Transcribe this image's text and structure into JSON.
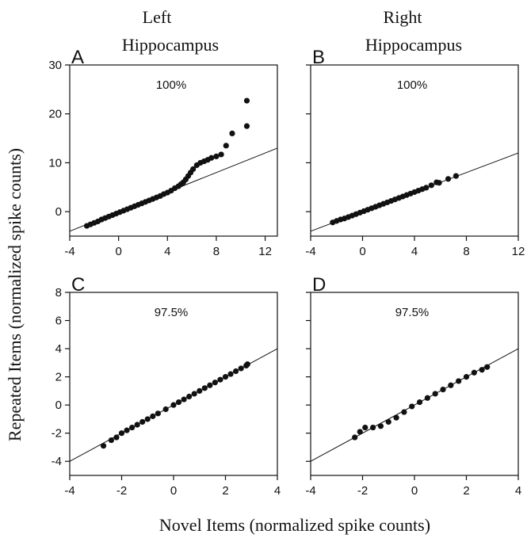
{
  "figure": {
    "column_titles": [
      [
        "Left",
        "Hippocampus"
      ],
      [
        "Right",
        "Hippocampus"
      ]
    ],
    "ylabel": "Repeated Items (normalized spike counts)",
    "xlabel": "Novel Items (normalized spike counts)"
  },
  "chart_data": [
    {
      "panel": "A",
      "type": "scatter",
      "annotation": "100%",
      "xlim": [
        -4,
        13
      ],
      "ylim": [
        -5,
        30
      ],
      "xticks": [
        -4,
        0,
        4,
        8,
        12
      ],
      "yticks": [
        0,
        10,
        20,
        30
      ],
      "reference_line": {
        "slope": 1,
        "intercept": 0
      },
      "points": [
        [
          -2.6,
          -2.9
        ],
        [
          -2.3,
          -2.6
        ],
        [
          -2.0,
          -2.3
        ],
        [
          -1.7,
          -2.0
        ],
        [
          -1.4,
          -1.6
        ],
        [
          -1.1,
          -1.3
        ],
        [
          -0.8,
          -1.0
        ],
        [
          -0.5,
          -0.7
        ],
        [
          -0.2,
          -0.4
        ],
        [
          0.1,
          -0.1
        ],
        [
          0.4,
          0.2
        ],
        [
          0.7,
          0.5
        ],
        [
          1.0,
          0.8
        ],
        [
          1.3,
          1.1
        ],
        [
          1.6,
          1.4
        ],
        [
          1.9,
          1.7
        ],
        [
          2.2,
          2.0
        ],
        [
          2.5,
          2.3
        ],
        [
          2.8,
          2.6
        ],
        [
          3.1,
          2.9
        ],
        [
          3.4,
          3.2
        ],
        [
          3.7,
          3.6
        ],
        [
          4.0,
          3.9
        ],
        [
          4.3,
          4.3
        ],
        [
          4.6,
          4.8
        ],
        [
          4.9,
          5.2
        ],
        [
          5.1,
          5.6
        ],
        [
          5.3,
          6.0
        ],
        [
          5.5,
          6.6
        ],
        [
          5.7,
          7.3
        ],
        [
          5.9,
          8.0
        ],
        [
          6.1,
          8.7
        ],
        [
          6.4,
          9.5
        ],
        [
          6.7,
          10.0
        ],
        [
          7.0,
          10.3
        ],
        [
          7.3,
          10.6
        ],
        [
          7.6,
          11.0
        ],
        [
          8.0,
          11.3
        ],
        [
          8.4,
          11.7
        ],
        [
          8.8,
          13.5
        ],
        [
          9.3,
          16.0
        ],
        [
          10.5,
          17.5
        ],
        [
          10.5,
          22.7
        ]
      ]
    },
    {
      "panel": "B",
      "type": "scatter",
      "annotation": "100%",
      "xlim": [
        -4,
        12
      ],
      "ylim": [
        -5,
        30
      ],
      "xticks": [
        -4,
        0,
        4,
        8,
        12
      ],
      "yticks": [
        0,
        10,
        20,
        30
      ],
      "reference_line": {
        "slope": 1,
        "intercept": 0
      },
      "points": [
        [
          -2.3,
          -2.2
        ],
        [
          -2.0,
          -1.9
        ],
        [
          -1.7,
          -1.6
        ],
        [
          -1.4,
          -1.4
        ],
        [
          -1.1,
          -1.1
        ],
        [
          -0.8,
          -0.8
        ],
        [
          -0.5,
          -0.5
        ],
        [
          -0.2,
          -0.2
        ],
        [
          0.1,
          0.1
        ],
        [
          0.4,
          0.4
        ],
        [
          0.7,
          0.7
        ],
        [
          1.0,
          1.0
        ],
        [
          1.3,
          1.3
        ],
        [
          1.6,
          1.6
        ],
        [
          1.9,
          1.9
        ],
        [
          2.2,
          2.2
        ],
        [
          2.5,
          2.5
        ],
        [
          2.8,
          2.8
        ],
        [
          3.1,
          3.1
        ],
        [
          3.4,
          3.4
        ],
        [
          3.7,
          3.7
        ],
        [
          4.0,
          4.0
        ],
        [
          4.3,
          4.3
        ],
        [
          4.6,
          4.6
        ],
        [
          4.9,
          4.9
        ],
        [
          5.3,
          5.4
        ],
        [
          5.7,
          6.0
        ],
        [
          5.9,
          5.9
        ],
        [
          6.6,
          6.7
        ],
        [
          7.2,
          7.3
        ]
      ]
    },
    {
      "panel": "C",
      "type": "scatter",
      "annotation": "97.5%",
      "xlim": [
        -4,
        4
      ],
      "ylim": [
        -5,
        8
      ],
      "xticks": [
        -4,
        -2,
        0,
        2,
        4
      ],
      "yticks": [
        -4,
        -2,
        0,
        2,
        4,
        6,
        8
      ],
      "reference_line": {
        "slope": 1,
        "intercept": 0
      },
      "points": [
        [
          -2.7,
          -2.9
        ],
        [
          -2.4,
          -2.5
        ],
        [
          -2.2,
          -2.3
        ],
        [
          -2.0,
          -2.0
        ],
        [
          -1.8,
          -1.8
        ],
        [
          -1.6,
          -1.6
        ],
        [
          -1.4,
          -1.4
        ],
        [
          -1.2,
          -1.2
        ],
        [
          -1.0,
          -1.0
        ],
        [
          -0.8,
          -0.8
        ],
        [
          -0.6,
          -0.6
        ],
        [
          -0.3,
          -0.3
        ],
        [
          0.0,
          0.0
        ],
        [
          0.2,
          0.2
        ],
        [
          0.4,
          0.4
        ],
        [
          0.6,
          0.6
        ],
        [
          0.8,
          0.8
        ],
        [
          1.0,
          1.0
        ],
        [
          1.2,
          1.2
        ],
        [
          1.4,
          1.4
        ],
        [
          1.6,
          1.6
        ],
        [
          1.8,
          1.8
        ],
        [
          2.0,
          2.0
        ],
        [
          2.2,
          2.2
        ],
        [
          2.4,
          2.4
        ],
        [
          2.6,
          2.6
        ],
        [
          2.8,
          2.8
        ],
        [
          2.85,
          2.9
        ]
      ]
    },
    {
      "panel": "D",
      "type": "scatter",
      "annotation": "97.5%",
      "xlim": [
        -4,
        4
      ],
      "ylim": [
        -5,
        8
      ],
      "xticks": [
        -4,
        -2,
        0,
        2,
        4
      ],
      "yticks": [
        -4,
        -2,
        0,
        2,
        4,
        6,
        8
      ],
      "reference_line": {
        "slope": 1,
        "intercept": 0
      },
      "points": [
        [
          -2.3,
          -2.3
        ],
        [
          -2.1,
          -1.9
        ],
        [
          -1.9,
          -1.6
        ],
        [
          -1.6,
          -1.6
        ],
        [
          -1.3,
          -1.5
        ],
        [
          -1.0,
          -1.2
        ],
        [
          -0.7,
          -0.9
        ],
        [
          -0.4,
          -0.5
        ],
        [
          -0.1,
          -0.1
        ],
        [
          0.2,
          0.2
        ],
        [
          0.5,
          0.5
        ],
        [
          0.8,
          0.8
        ],
        [
          1.1,
          1.1
        ],
        [
          1.4,
          1.4
        ],
        [
          1.7,
          1.7
        ],
        [
          2.0,
          2.0
        ],
        [
          2.3,
          2.3
        ],
        [
          2.6,
          2.5
        ],
        [
          2.8,
          2.7
        ]
      ]
    }
  ]
}
